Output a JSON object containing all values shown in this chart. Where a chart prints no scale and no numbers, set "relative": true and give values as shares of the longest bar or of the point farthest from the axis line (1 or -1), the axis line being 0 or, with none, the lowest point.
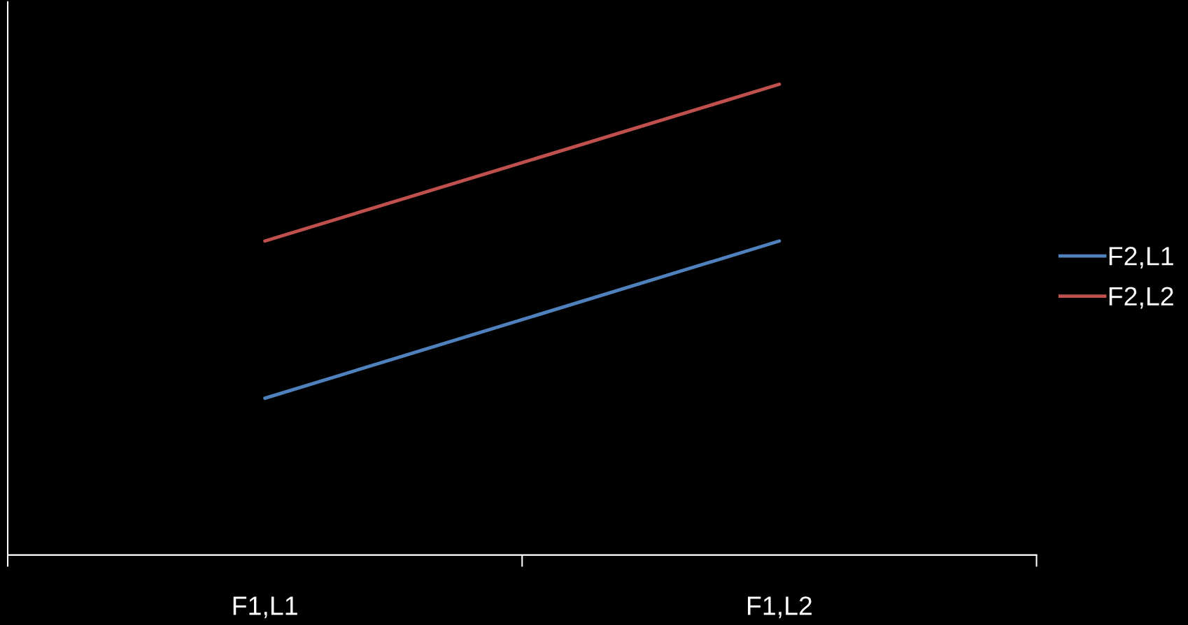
{
  "chart_data": {
    "type": "line",
    "relative": true,
    "categories": [
      "F1,L1",
      "F1,L2"
    ],
    "series": [
      {
        "name": "F2,L1",
        "color": "#4f81bd",
        "values": [
          0.333,
          0.667
        ]
      },
      {
        "name": "F2,L2",
        "color": "#c0504d",
        "values": [
          0.667,
          1
        ]
      }
    ],
    "legend": "right",
    "grid": false,
    "marker": "none",
    "line_style": "solid"
  }
}
